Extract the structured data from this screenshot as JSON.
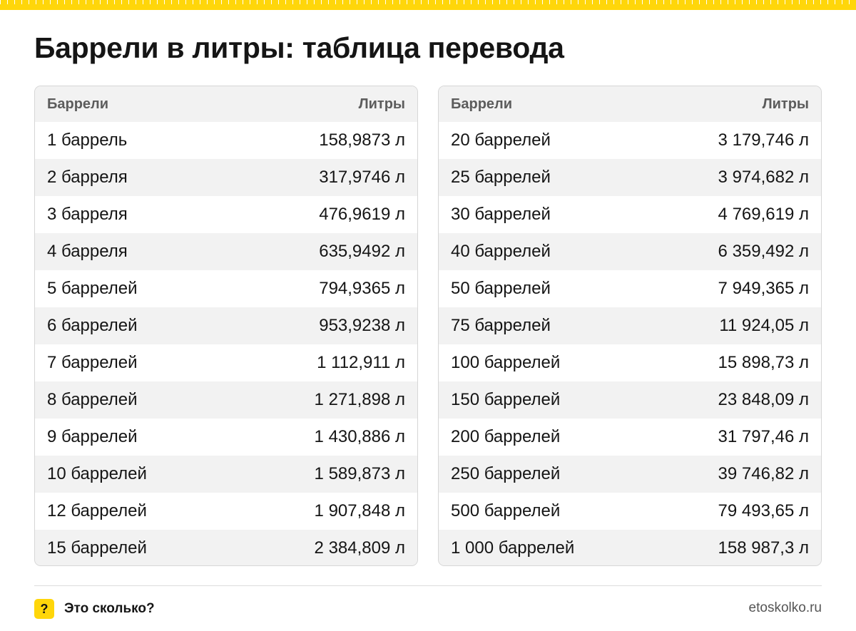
{
  "title": "Баррели в литры: таблица перевода",
  "table_left": {
    "col_from": "Баррели",
    "col_to": "Литры",
    "rows": [
      {
        "from": "1 баррель",
        "to": "158,9873 л"
      },
      {
        "from": "2 барреля",
        "to": "317,9746 л"
      },
      {
        "from": "3 барреля",
        "to": "476,9619 л"
      },
      {
        "from": "4 барреля",
        "to": "635,9492 л"
      },
      {
        "from": "5 баррелей",
        "to": "794,9365 л"
      },
      {
        "from": "6 баррелей",
        "to": "953,9238 л"
      },
      {
        "from": "7 баррелей",
        "to": "1 112,911 л"
      },
      {
        "from": "8 баррелей",
        "to": "1 271,898 л"
      },
      {
        "from": "9 баррелей",
        "to": "1 430,886 л"
      },
      {
        "from": "10 баррелей",
        "to": "1 589,873 л"
      },
      {
        "from": "12 баррелей",
        "to": "1 907,848 л"
      },
      {
        "from": "15 баррелей",
        "to": "2 384,809 л"
      }
    ]
  },
  "table_right": {
    "col_from": "Баррели",
    "col_to": "Литры",
    "rows": [
      {
        "from": "20 баррелей",
        "to": "3 179,746 л"
      },
      {
        "from": "25 баррелей",
        "to": "3 974,682 л"
      },
      {
        "from": "30 баррелей",
        "to": "4 769,619 л"
      },
      {
        "from": "40 баррелей",
        "to": "6 359,492 л"
      },
      {
        "from": "50 баррелей",
        "to": "7 949,365 л"
      },
      {
        "from": "75 баррелей",
        "to": "11 924,05 л"
      },
      {
        "from": "100 баррелей",
        "to": "15 898,73 л"
      },
      {
        "from": "150 баррелей",
        "to": "23 848,09 л"
      },
      {
        "from": "200 баррелей",
        "to": "31 797,46 л"
      },
      {
        "from": "250 баррелей",
        "to": "39 746,82 л"
      },
      {
        "from": "500 баррелей",
        "to": "79 493,65 л"
      },
      {
        "from": "1 000 баррелей",
        "to": "158 987,3 л"
      }
    ]
  },
  "footer": {
    "badge": "?",
    "brand": "Это сколько?",
    "site": "etoskolko.ru"
  },
  "colors": {
    "accent": "#ffd60a",
    "row_alt": "#f2f2f2",
    "text": "#151515"
  }
}
